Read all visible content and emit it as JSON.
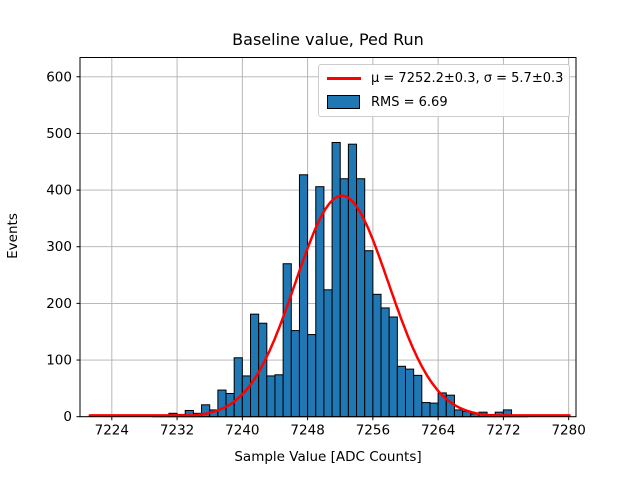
{
  "colors": {
    "background": "#ffffff",
    "bar_fill": "#1f77b4",
    "bar_edge": "#000000",
    "fit_line": "#ff0000",
    "grid": "#b0b0b0",
    "axis": "#000000",
    "legend_border": "#cccccc"
  },
  "legend": [
    {
      "swatch": "line",
      "label": "μ = 7252.2±0.3, σ = 5.7±0.3"
    },
    {
      "swatch": "patch",
      "label": "RMS = 6.69"
    }
  ],
  "chart_data": {
    "type": "bar",
    "subtype": "histogram",
    "title": "Baseline value, Ped Run",
    "xlabel": "Sample Value [ADC Counts]",
    "ylabel": "Events",
    "grid": true,
    "legend_position": "upper right",
    "xlim": [
      7220.1,
      7280.9
    ],
    "ylim": [
      0,
      634
    ],
    "x_ticks": [
      7224,
      7232,
      7240,
      7248,
      7256,
      7264,
      7272,
      7280
    ],
    "y_ticks": [
      0,
      100,
      200,
      300,
      400,
      500,
      600
    ],
    "bin_width": 1,
    "bin_left_edges": [
      7229,
      7230,
      7231,
      7232,
      7233,
      7234,
      7235,
      7236,
      7237,
      7238,
      7239,
      7240,
      7241,
      7242,
      7243,
      7244,
      7245,
      7246,
      7247,
      7248,
      7249,
      7250,
      7251,
      7252,
      7253,
      7254,
      7255,
      7256,
      7257,
      7258,
      7259,
      7260,
      7261,
      7262,
      7263,
      7264,
      7265,
      7266,
      7267,
      7268,
      7269,
      7270,
      7271,
      7272,
      7273,
      7274
    ],
    "values": [
      1,
      3,
      6,
      4,
      11,
      6,
      21,
      12,
      47,
      41,
      104,
      72,
      181,
      165,
      72,
      74,
      270,
      152,
      427,
      145,
      406,
      224,
      484,
      420,
      481,
      420,
      293,
      216,
      192,
      176,
      89,
      84,
      73,
      25,
      24,
      42,
      38,
      12,
      9,
      5,
      8,
      4,
      8,
      12,
      2,
      1
    ],
    "fit_curve": {
      "type": "gaussian",
      "mu": 7252.2,
      "mu_err": 0.3,
      "sigma": 5.7,
      "sigma_err": 0.3,
      "amplitude": 390,
      "x_start": 7221.3,
      "x_end": 7280.2
    },
    "rms": 6.69
  }
}
